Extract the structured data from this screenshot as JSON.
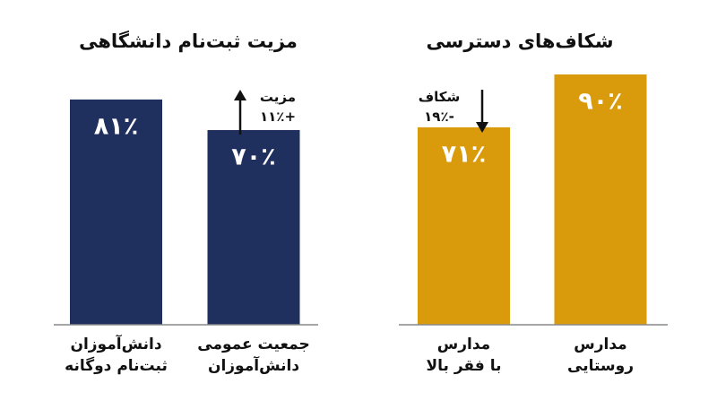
{
  "chart_data": [
    {
      "type": "bar",
      "title": "مزیت ثبت‌نام دانشگاهی",
      "categories": [
        "دانش‌آموزان\nثبت‌نام دوگانه",
        "جمعیت عمومی\nدانش‌آموزان"
      ],
      "values": [
        81,
        70
      ],
      "value_labels": [
        "۸۱٪",
        "۷۰٪"
      ],
      "color": "#1f2f5e",
      "ylim": [
        0,
        100
      ],
      "annotation": {
        "text": "مزیت\n+۱۱٪",
        "direction": "up"
      }
    },
    {
      "type": "bar",
      "title": "شکاف‌های دسترسی",
      "categories": [
        "مدارس\nبا فقر بالا",
        "مدارس\nروستایی"
      ],
      "values": [
        71,
        90
      ],
      "value_labels": [
        "۷۱٪",
        "۹۰٪"
      ],
      "color": "#d99a0b",
      "ylim": [
        0,
        100
      ],
      "annotation": {
        "text": "شکاف\n-۱۹٪",
        "direction": "down"
      }
    }
  ]
}
